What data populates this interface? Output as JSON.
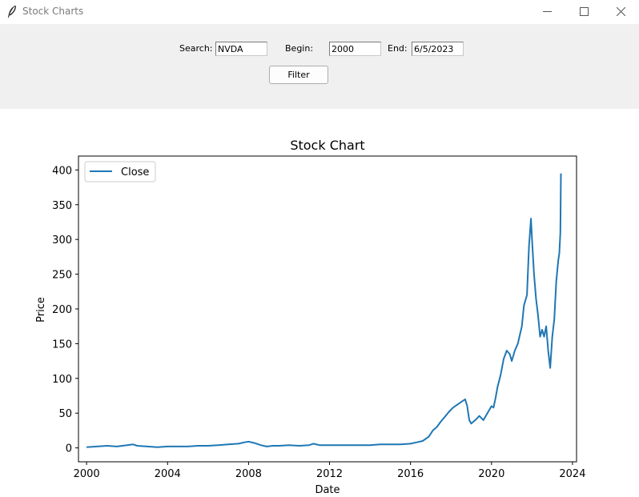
{
  "window": {
    "title": "Stock Charts"
  },
  "toolbar": {
    "search_label": "Search:",
    "search_value": "NVDA",
    "begin_label": "Begin:",
    "begin_value": "2000",
    "end_label": "End:",
    "end_value": "6/5/2023",
    "filter_label": "Filter"
  },
  "colors": {
    "line": "#1f77b4",
    "toolbar_bg": "#f0f0f0"
  },
  "chart_data": {
    "type": "line",
    "title": "Stock Chart",
    "xlabel": "Date",
    "ylabel": "Price",
    "xlim": [
      1999.6,
      2024.2
    ],
    "ylim": [
      -20,
      420
    ],
    "x_ticks": [
      "2000",
      "2004",
      "2008",
      "2012",
      "2016",
      "2020",
      "2024"
    ],
    "y_ticks": [
      "0",
      "50",
      "100",
      "150",
      "200",
      "250",
      "300",
      "350",
      "400"
    ],
    "grid": false,
    "legend": "upper-left",
    "series": [
      {
        "name": "Close",
        "x": [
          2000.0,
          2000.5,
          2001.0,
          2001.5,
          2002.0,
          2002.3,
          2002.5,
          2003.0,
          2003.5,
          2004.0,
          2004.5,
          2005.0,
          2005.5,
          2006.0,
          2006.5,
          2007.0,
          2007.5,
          2007.8,
          2008.0,
          2008.3,
          2008.6,
          2008.9,
          2009.2,
          2009.5,
          2010.0,
          2010.5,
          2011.0,
          2011.2,
          2011.5,
          2012.0,
          2012.5,
          2013.0,
          2013.5,
          2014.0,
          2014.5,
          2015.0,
          2015.5,
          2016.0,
          2016.3,
          2016.6,
          2016.9,
          2017.1,
          2017.3,
          2017.5,
          2017.7,
          2017.9,
          2018.1,
          2018.3,
          2018.5,
          2018.7,
          2018.8,
          2018.9,
          2019.0,
          2019.2,
          2019.4,
          2019.6,
          2019.8,
          2020.0,
          2020.1,
          2020.2,
          2020.3,
          2020.45,
          2020.6,
          2020.75,
          2020.9,
          2021.0,
          2021.15,
          2021.3,
          2021.5,
          2021.6,
          2021.75,
          2021.85,
          2021.95,
          2022.0,
          2022.1,
          2022.2,
          2022.3,
          2022.4,
          2022.5,
          2022.6,
          2022.7,
          2022.8,
          2022.9,
          2023.0,
          2023.1,
          2023.2,
          2023.3,
          2023.35,
          2023.4,
          2023.43
        ],
        "values": [
          1,
          2,
          3,
          2,
          4,
          5,
          3,
          2,
          1,
          2,
          2,
          2,
          3,
          3,
          4,
          5,
          6,
          8,
          9,
          7,
          4,
          2,
          3,
          3,
          4,
          3,
          4,
          6,
          4,
          4,
          4,
          4,
          4,
          4,
          5,
          5,
          5,
          6,
          8,
          10,
          16,
          25,
          30,
          38,
          45,
          52,
          58,
          62,
          66,
          70,
          60,
          40,
          35,
          40,
          46,
          40,
          50,
          60,
          58,
          72,
          88,
          105,
          128,
          140,
          135,
          125,
          140,
          150,
          175,
          205,
          220,
          290,
          330,
          300,
          250,
          215,
          190,
          160,
          170,
          160,
          175,
          140,
          115,
          160,
          185,
          240,
          270,
          280,
          310,
          395
        ]
      }
    ]
  }
}
